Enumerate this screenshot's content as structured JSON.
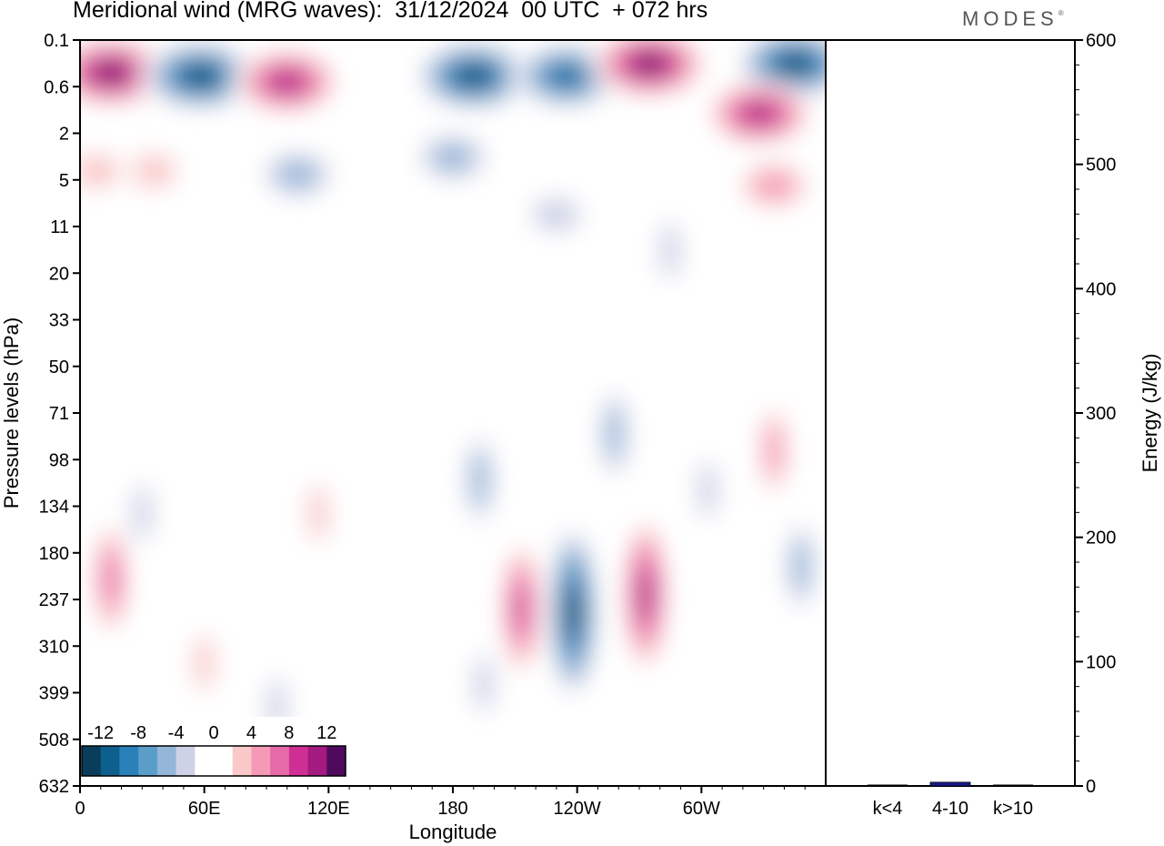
{
  "header": {
    "title": "Meridional wind (MRG waves):  31/12/2024  00 UTC  + 072 hrs",
    "brand": "MODES",
    "brand_mark": "®"
  },
  "chart_data": [
    {
      "type": "heatmap",
      "title": "Meridional wind (MRG waves):  31/12/2024  00 UTC  + 072 hrs",
      "xlabel": "Longitude",
      "ylabel": "Pressure levels (hPa)",
      "x_ticks": [
        "0",
        "60E",
        "120E",
        "180",
        "120W",
        "60W"
      ],
      "x_tick_values": [
        0,
        60,
        120,
        180,
        240,
        300
      ],
      "xlim": [
        0,
        360
      ],
      "y_ticks": [
        "0.1",
        "0.6",
        "2",
        "5",
        "11",
        "20",
        "33",
        "50",
        "71",
        "98",
        "134",
        "180",
        "237",
        "310",
        "399",
        "508",
        "632"
      ],
      "y_scale": "log",
      "y_inverted": true,
      "colorbar": {
        "labels": [
          "-12",
          "-8",
          "-4",
          "0",
          "4",
          "8",
          "12"
        ],
        "label_values": [
          -12,
          -8,
          -4,
          0,
          4,
          8,
          12
        ],
        "levels": [
          -14,
          -12,
          -10,
          -8,
          -6,
          -4,
          -2,
          0,
          2,
          4,
          6,
          8,
          10,
          12,
          14
        ],
        "colors": [
          "#0a3c5c",
          "#0d5f8e",
          "#2a80b8",
          "#5a9dc9",
          "#93b6d9",
          "#cdd2e6",
          "#ffffff",
          "#ffffff",
          "#f9c8c8",
          "#f49ab7",
          "#e76aa8",
          "#cf2f94",
          "#a31a80",
          "#4f0a5e"
        ]
      },
      "features": [
        {
          "lon": 15,
          "p": 0.35,
          "value": 14
        },
        {
          "lon": 58,
          "p": 0.4,
          "value": -14
        },
        {
          "lon": 100,
          "p": 0.5,
          "value": 12
        },
        {
          "lon": 190,
          "p": 0.4,
          "value": -14
        },
        {
          "lon": 235,
          "p": 0.4,
          "value": -12
        },
        {
          "lon": 275,
          "p": 0.25,
          "value": 14
        },
        {
          "lon": 345,
          "p": 0.25,
          "value": -14
        },
        {
          "lon": 328,
          "p": 1.2,
          "value": 12
        },
        {
          "lon": 105,
          "p": 4.5,
          "value": -6
        },
        {
          "lon": 180,
          "p": 3.2,
          "value": -6
        },
        {
          "lon": 35,
          "p": 4.2,
          "value": 4
        },
        {
          "lon": 8,
          "p": 4.2,
          "value": 4
        },
        {
          "lon": 335,
          "p": 5.5,
          "value": 6
        },
        {
          "lon": 230,
          "p": 9,
          "value": -4
        },
        {
          "lon": 75,
          "p": 14,
          "value": 2
        },
        {
          "lon": 285,
          "p": 15,
          "value": -4
        },
        {
          "lon": 135,
          "p": 42,
          "value": 2
        },
        {
          "lon": 330,
          "p": 40,
          "value": -2
        },
        {
          "lon": 238,
          "p": 255,
          "value": -14
        },
        {
          "lon": 273,
          "p": 230,
          "value": 12
        },
        {
          "lon": 213,
          "p": 250,
          "value": 10
        },
        {
          "lon": 193,
          "p": 112,
          "value": -6
        },
        {
          "lon": 15,
          "p": 210,
          "value": 8
        },
        {
          "lon": 115,
          "p": 140,
          "value": 4
        },
        {
          "lon": 30,
          "p": 140,
          "value": -4
        },
        {
          "lon": 348,
          "p": 195,
          "value": -6
        },
        {
          "lon": 303,
          "p": 120,
          "value": -4
        },
        {
          "lon": 335,
          "p": 92,
          "value": 6
        },
        {
          "lon": 60,
          "p": 340,
          "value": 4
        },
        {
          "lon": 95,
          "p": 430,
          "value": -4
        },
        {
          "lon": 140,
          "p": 390,
          "value": -2
        },
        {
          "lon": 195,
          "p": 380,
          "value": -4
        },
        {
          "lon": 80,
          "p": 180,
          "value": 2
        },
        {
          "lon": 258,
          "p": 82,
          "value": -6
        }
      ]
    },
    {
      "type": "bar",
      "categories": [
        "k<4",
        "4-10",
        "k>10"
      ],
      "values": [
        0,
        3,
        0
      ],
      "ylabel": "Energy (J/kg)",
      "ylim": [
        0,
        600
      ],
      "y_ticks": [
        "0",
        "100",
        "200",
        "300",
        "400",
        "500",
        "600"
      ],
      "y_tick_values": [
        0,
        100,
        200,
        300,
        400,
        500,
        600
      ],
      "bar_color": "#1a1a8c"
    }
  ]
}
